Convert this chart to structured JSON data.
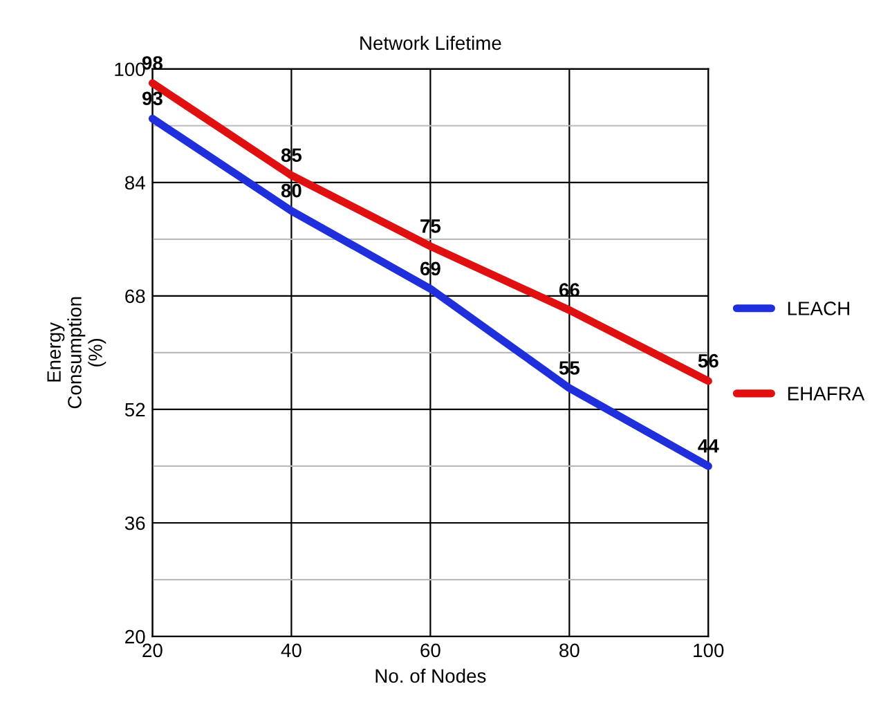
{
  "chart_data": {
    "type": "line",
    "title": "Network Lifetime",
    "xlabel": "No. of Nodes",
    "ylabel": "Energy\nConsumption\n(%)",
    "x": [
      20,
      40,
      60,
      80,
      100
    ],
    "series": [
      {
        "name": "LEACH",
        "color": "#1f2fdc",
        "values": [
          93,
          80,
          69,
          55,
          44
        ]
      },
      {
        "name": "EHAFRA",
        "color": "#e01010",
        "values": [
          98,
          85,
          75,
          66,
          56
        ]
      }
    ],
    "xlim": [
      20,
      100
    ],
    "xticks": [
      20,
      40,
      60,
      80,
      100
    ],
    "ylim": [
      20,
      100
    ],
    "yticks": [
      20,
      {
        "value": 28,
        "label": null
      },
      36,
      {
        "value": 44,
        "label": null
      },
      52,
      {
        "value": 60,
        "label": null
      },
      68,
      {
        "value": 76,
        "label": null
      },
      84,
      {
        "value": 92,
        "label": null
      },
      100
    ],
    "grid": true,
    "legend": "right",
    "data_labels": true,
    "marker": "none",
    "line_style": "solid"
  }
}
